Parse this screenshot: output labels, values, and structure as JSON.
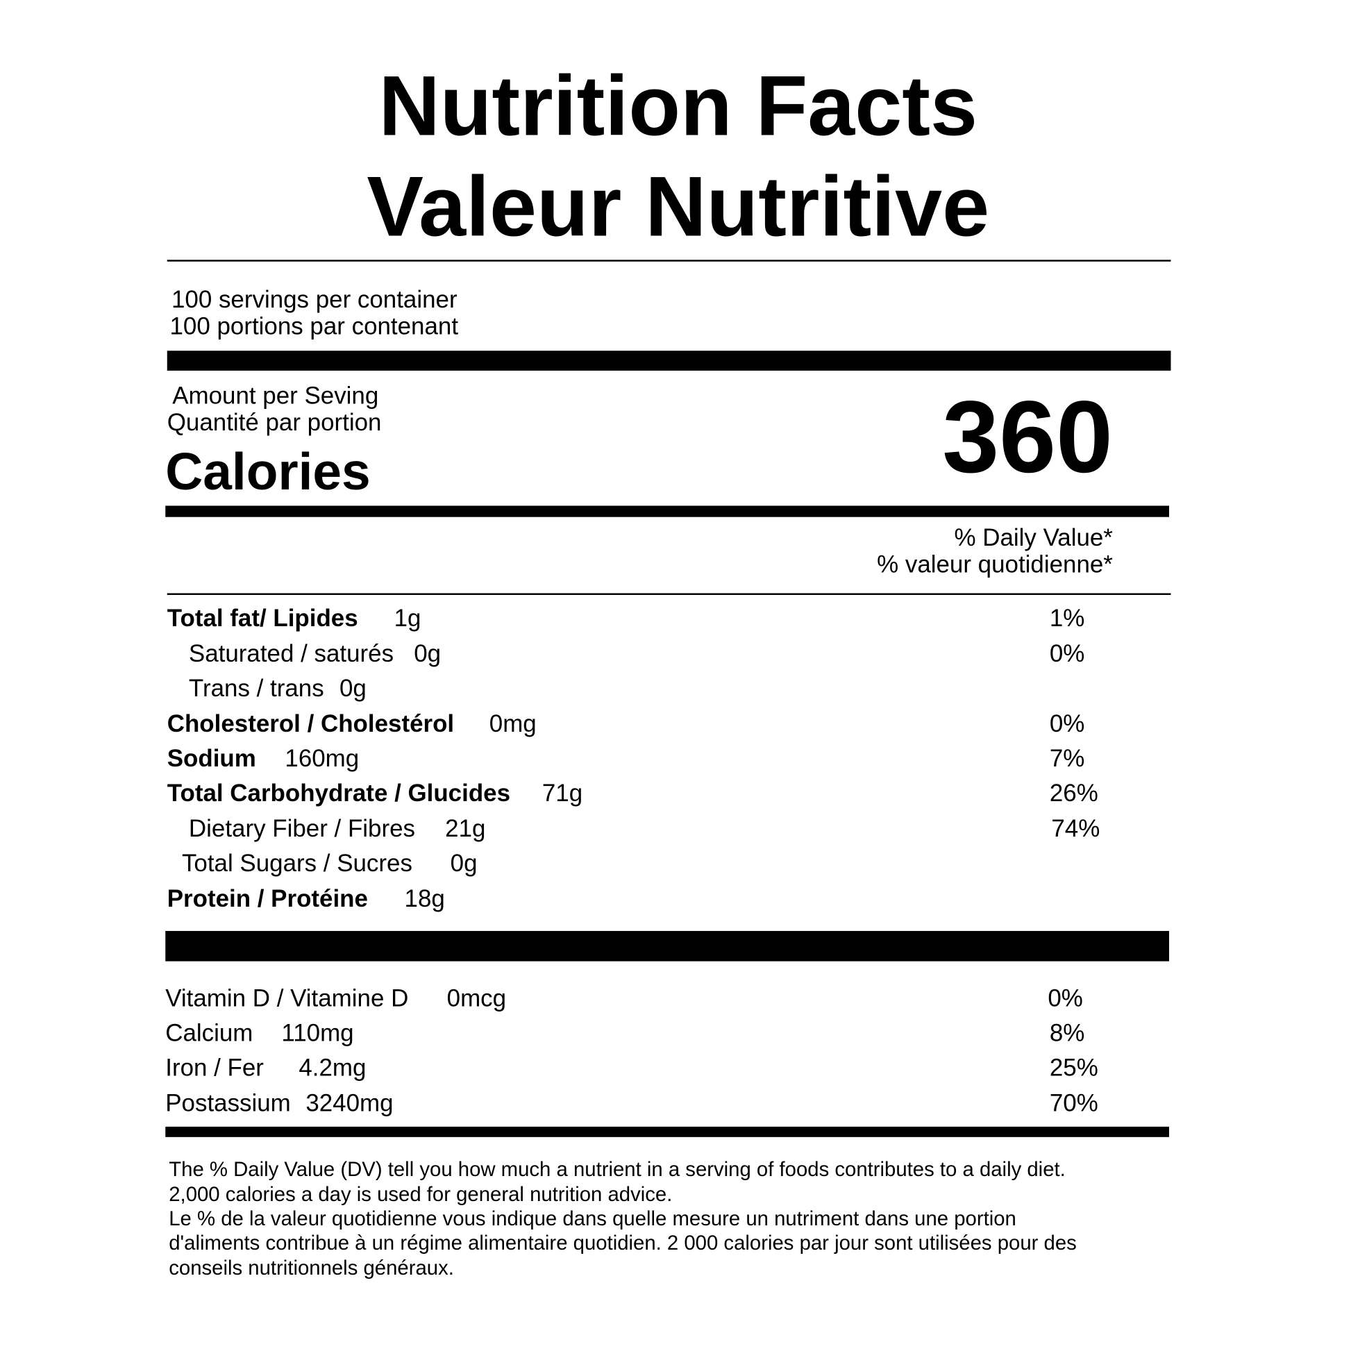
{
  "header": {
    "title_lines": [
      "Nutrition Facts",
      "Valeur Nutritive"
    ]
  },
  "servings": [
    "100 servings per container",
    "100 portions par contenant"
  ],
  "amount_per": [
    "Amount per Seving",
    "Quantité par portion"
  ],
  "calories": {
    "label": "Calories",
    "value": 360
  },
  "daily_value_header": [
    "% Daily Value*",
    "% valeur quotidienne*"
  ],
  "nutrients": [
    {
      "name": "Total fat/ Lipides",
      "amount": "1g",
      "dv": "1%"
    },
    {
      "name": "Saturated / saturés",
      "amount": "0g",
      "dv": "0%"
    },
    {
      "name": "Trans / trans",
      "amount": "0g"
    },
    {
      "name": "Cholesterol / Cholestérol",
      "amount": "0mg",
      "dv": "0%"
    },
    {
      "name": "Sodium",
      "amount": "160mg",
      "dv": "7%"
    },
    {
      "name": "Total Carbohydrate / Glucides",
      "amount": "71g",
      "dv": "26%"
    },
    {
      "name": "Dietary Fiber / Fibres",
      "amount": "21g",
      "dv": "74%"
    },
    {
      "name": "Total Sugars / Sucres",
      "amount": "0g"
    },
    {
      "name": "Protein / Protéine",
      "amount": "18g"
    }
  ],
  "vitamins": [
    {
      "name": "Vitamin D / Vitamine D",
      "amount": "0mcg",
      "dv": "0%"
    },
    {
      "name": "Calcium",
      "amount": "110mg",
      "dv": "8%"
    },
    {
      "name": "Iron / Fer",
      "amount": "4.2mg",
      "dv": "25%"
    },
    {
      "name": "Postassium",
      "amount": "3240mg",
      "dv": "70%"
    }
  ],
  "footnote": [
    "The % Daily Value (DV) tell you how much a nutrient in a serving of foods contributes to a daily diet.",
    "2,000 calories a day is used for general nutrition advice.",
    "Le % de la valeur quotidienne vous indique dans quelle mesure un nutriment dans une portion",
    "d'aliments contribue à un régime alimentaire quotidien. 2 000 calories par jour sont utilisées pour des",
    "conseils nutritionnels généraux."
  ]
}
